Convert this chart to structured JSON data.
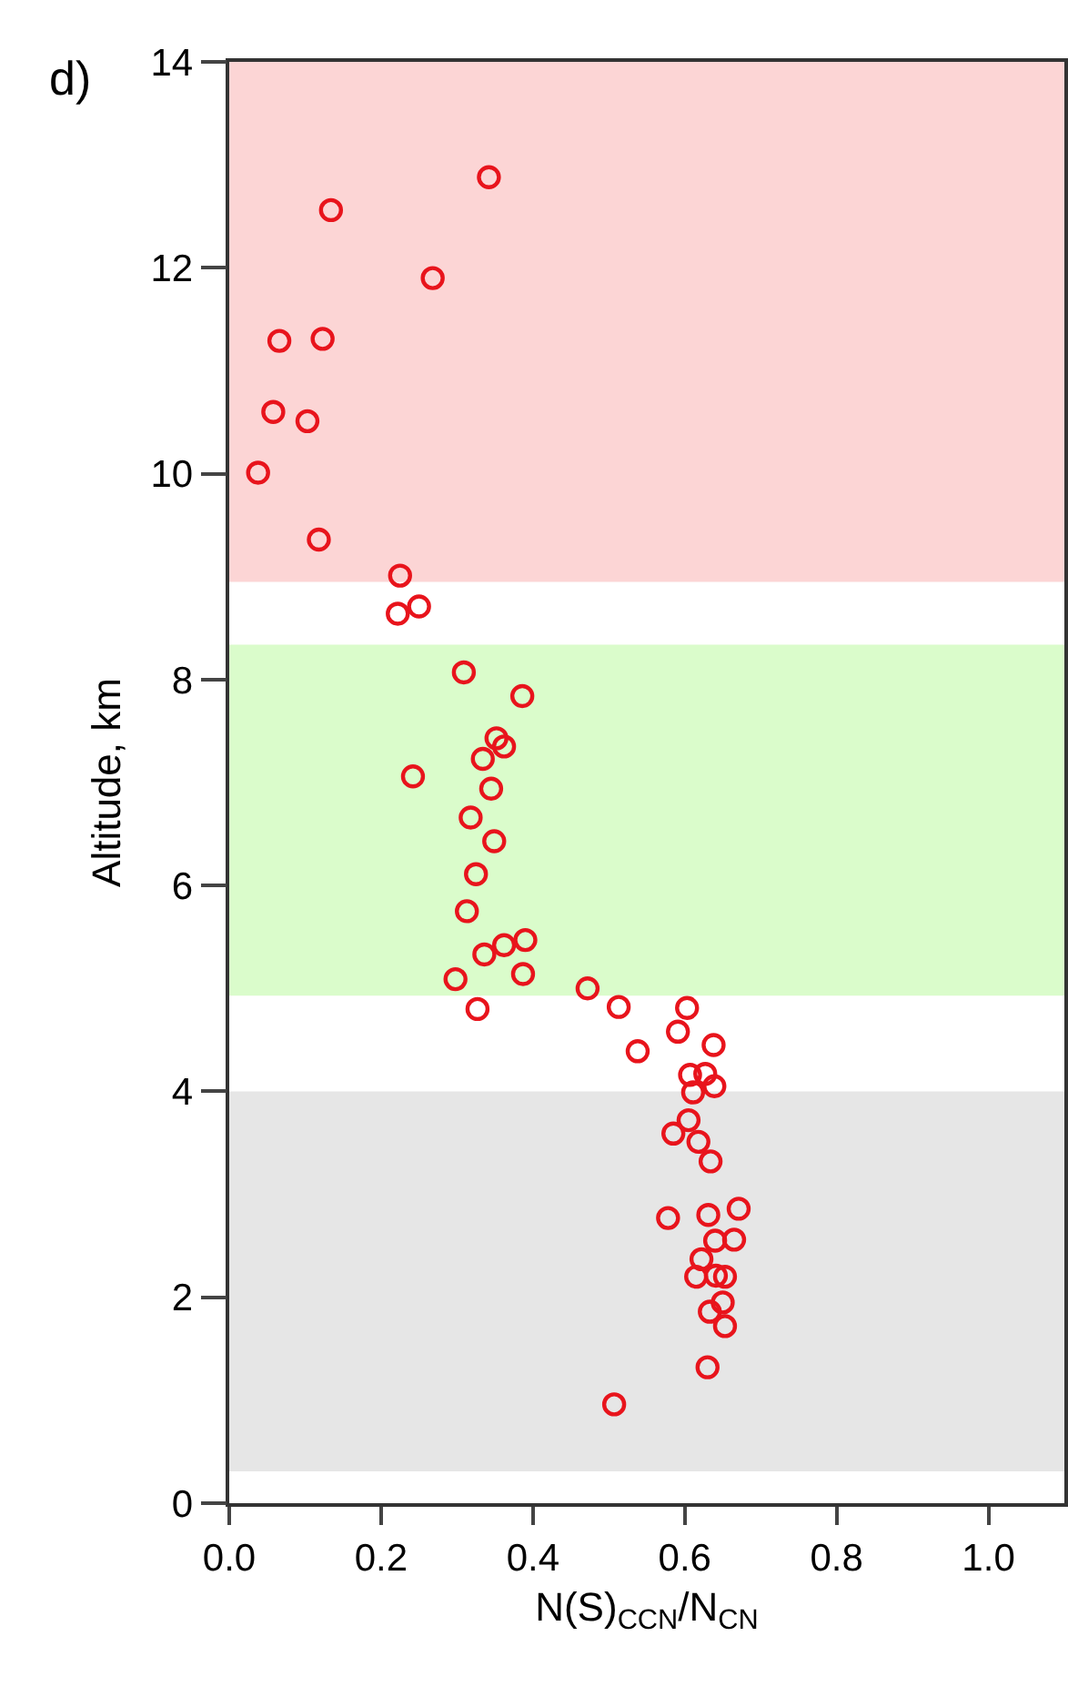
{
  "chart_data": {
    "type": "scatter",
    "xlabel": "N(S)$_{CCN}$/N$_{CN}$",
    "ylabel": "Altitude, km",
    "annotations": [
      "d)"
    ],
    "x": [
      0.342,
      0.134,
      0.268,
      0.066,
      0.123,
      0.058,
      0.103,
      0.038,
      0.118,
      0.225,
      0.222,
      0.25,
      0.309,
      0.386,
      0.352,
      0.362,
      0.334,
      0.242,
      0.345,
      0.318,
      0.349,
      0.325,
      0.313,
      0.39,
      0.362,
      0.336,
      0.387,
      0.298,
      0.327,
      0.472,
      0.513,
      0.603,
      0.591,
      0.638,
      0.538,
      0.607,
      0.627,
      0.611,
      0.639,
      0.605,
      0.585,
      0.618,
      0.634,
      0.671,
      0.631,
      0.578,
      0.665,
      0.64,
      0.622,
      0.615,
      0.641,
      0.653,
      0.65,
      0.633,
      0.653,
      0.63,
      0.507
    ],
    "series": [
      {
        "color": "#e8141c",
        "values": [
          12.88,
          12.56,
          11.9,
          11.29,
          11.31,
          10.6,
          10.51,
          10.01,
          9.36,
          9.01,
          8.64,
          8.71,
          8.07,
          7.84,
          7.43,
          7.35,
          7.23,
          7.06,
          6.94,
          6.66,
          6.43,
          6.11,
          5.75,
          5.47,
          5.42,
          5.33,
          5.14,
          5.09,
          4.8,
          5.0,
          4.82,
          4.81,
          4.58,
          4.45,
          4.39,
          4.16,
          4.17,
          3.99,
          4.05,
          3.72,
          3.59,
          3.51,
          3.32,
          2.86,
          2.8,
          2.77,
          2.56,
          2.55,
          2.37,
          2.2,
          2.21,
          2.2,
          1.95,
          1.86,
          1.72,
          1.32,
          0.96
        ]
      }
    ],
    "xlim": [
      0,
      1.1
    ],
    "xticks": [
      {
        "value": 0,
        "label": "0.0"
      },
      {
        "value": 0.2,
        "label": "0.2"
      },
      {
        "value": 0.4,
        "label": "0.4"
      },
      {
        "value": 0.6,
        "label": "0.6"
      },
      {
        "value": 0.8,
        "label": "0.8"
      },
      {
        "value": 1,
        "label": "1.0"
      }
    ],
    "ylim": [
      0,
      14
    ],
    "yticks": [
      0,
      2,
      4,
      6,
      8,
      10,
      12,
      14
    ],
    "bands": [
      {
        "axis": "y",
        "from": 0.31,
        "to": 4.0,
        "color": "#e6e6e6"
      },
      {
        "axis": "y",
        "from": 4.93,
        "to": 8.34,
        "color": "#dafccb"
      },
      {
        "axis": "y",
        "from": 8.95,
        "to": 14,
        "color": "#fcd5d5"
      }
    ],
    "marker": "circle",
    "grid": false
  }
}
